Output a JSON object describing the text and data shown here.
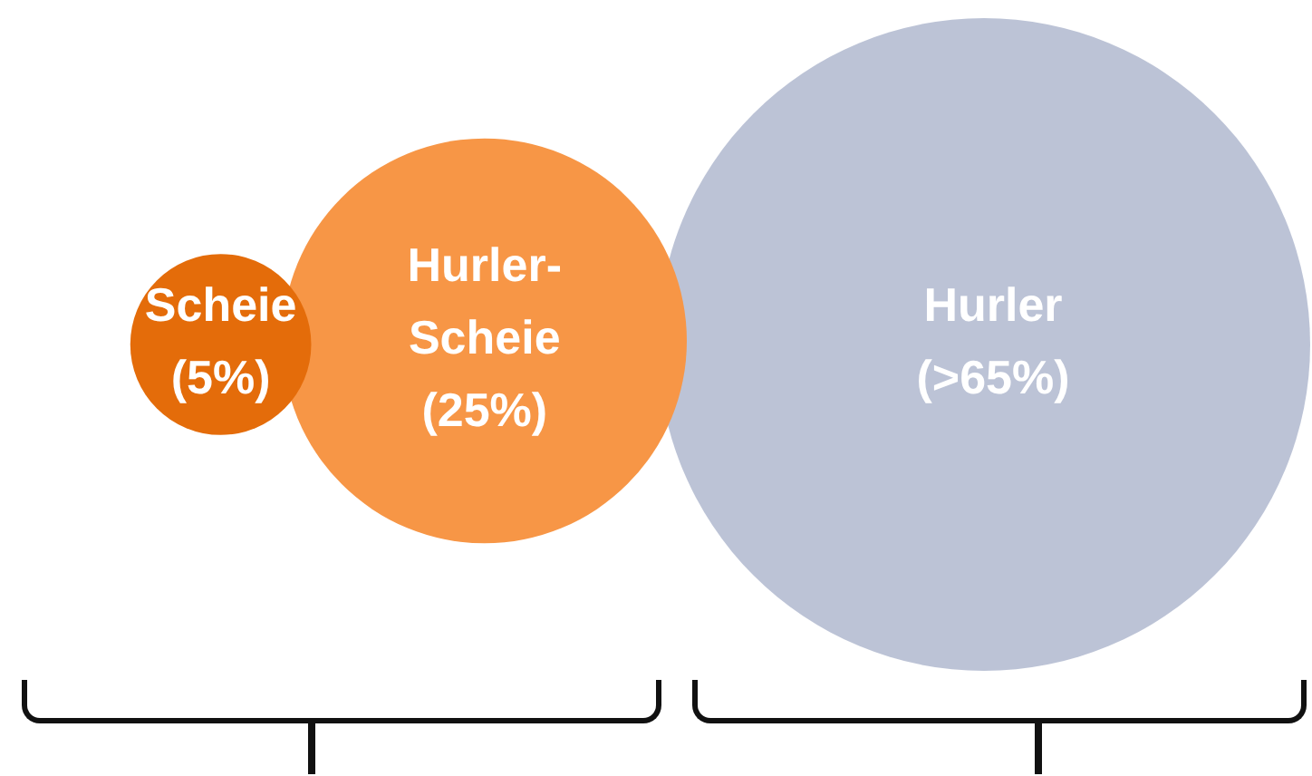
{
  "chart_data": {
    "type": "other",
    "categories": [
      "Scheie",
      "Hurler-Scheie",
      "Hurler"
    ],
    "values": [
      5,
      25,
      65
    ],
    "value_labels": [
      "(5%)",
      "(25%)",
      "(>65%)"
    ],
    "colors": [
      "#e46c0a",
      "#f79646",
      "#b3bbd0"
    ]
  }
}
